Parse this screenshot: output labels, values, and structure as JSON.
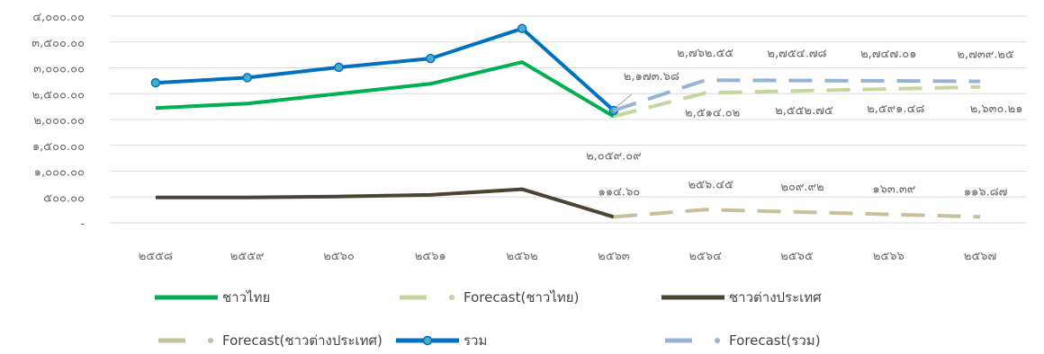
{
  "chart_data": {
    "type": "line",
    "title": "",
    "xlabel": "",
    "ylabel": "",
    "ylim": [
      0,
      4000
    ],
    "grid": true,
    "legend_position": "bottom",
    "y_ticks": [
      {
        "value": 0,
        "label": "-"
      },
      {
        "value": 500,
        "label": "๕๐๐.๐๐"
      },
      {
        "value": 1000,
        "label": "๑,๐๐๐.๐๐"
      },
      {
        "value": 1500,
        "label": "๑,๕๐๐.๐๐"
      },
      {
        "value": 2000,
        "label": "๒,๐๐๐.๐๐"
      },
      {
        "value": 2500,
        "label": "๒,๕๐๐.๐๐"
      },
      {
        "value": 3000,
        "label": "๓,๐๐๐.๐๐"
      },
      {
        "value": 3500,
        "label": "๓,๕๐๐.๐๐"
      },
      {
        "value": 4000,
        "label": "๔,๐๐๐.๐๐"
      }
    ],
    "categories": [
      "๒๕๕๘",
      "๒๕๕๙",
      "๒๕๖๐",
      "๒๕๖๑",
      "๒๕๖๒",
      "๒๕๖๓",
      "๒๕๖๔",
      "๒๕๖๕",
      "๒๕๖๖",
      "๒๕๖๗"
    ],
    "series": [
      {
        "name": "ชาวไทย",
        "color": "#00b050",
        "style": "solid",
        "markers": false,
        "values": [
          2220,
          2310,
          2500,
          2690,
          3110,
          2059.09,
          null,
          null,
          null,
          null
        ]
      },
      {
        "name": "Forecast(ชาวไทย)",
        "color": "#c4d79b",
        "style": "dashed",
        "markers": false,
        "values": [
          null,
          null,
          null,
          null,
          null,
          2059.09,
          2514.02,
          2552.75,
          2591.48,
          2630.21
        ]
      },
      {
        "name": "ชาวต่างประเทศ",
        "color": "#4a4430",
        "style": "solid",
        "markers": false,
        "values": [
          490,
          490,
          510,
          540,
          650,
          114.6,
          null,
          null,
          null,
          null
        ]
      },
      {
        "name": "Forecast(ชาวต่างประเทศ)",
        "color": "#c9bf9a",
        "style": "dashed",
        "markers": false,
        "values": [
          null,
          null,
          null,
          null,
          null,
          114.6,
          256.45,
          209.92,
          163.39,
          116.87
        ]
      },
      {
        "name": "รวม",
        "color": "#0070c0",
        "style": "solid",
        "markers": true,
        "values": [
          2710,
          2810,
          3010,
          3180,
          3760,
          2173.68,
          null,
          null,
          null,
          null
        ]
      },
      {
        "name": "Forecast(รวม)",
        "color": "#95b3d7",
        "style": "dashed",
        "markers": false,
        "values": [
          null,
          null,
          null,
          null,
          null,
          2173.68,
          2762.55,
          2754.78,
          2747.01,
          2739.25
        ]
      }
    ],
    "data_labels": [
      {
        "series": 5,
        "index": 5,
        "text": "๒,๑๗๓.๖๘"
      },
      {
        "series": 5,
        "index": 6,
        "text": "๒,๗๖๒.๕๕"
      },
      {
        "series": 5,
        "index": 7,
        "text": "๒,๗๕๔.๗๘"
      },
      {
        "series": 5,
        "index": 8,
        "text": "๒,๗๔๗.๐๑"
      },
      {
        "series": 5,
        "index": 9,
        "text": "๒,๗๓๙.๒๕"
      },
      {
        "series": 1,
        "index": 5,
        "text": "๒,๐๕๙.๐๙"
      },
      {
        "series": 1,
        "index": 6,
        "text": "๒,๕๑๔.๐๒"
      },
      {
        "series": 1,
        "index": 7,
        "text": "๒,๕๕๒.๗๕"
      },
      {
        "series": 1,
        "index": 8,
        "text": "๒,๕๙๑.๔๘"
      },
      {
        "series": 1,
        "index": 9,
        "text": "๒,๖๓๐.๒๑"
      },
      {
        "series": 3,
        "index": 5,
        "text": "๑๑๔.๖๐"
      },
      {
        "series": 3,
        "index": 6,
        "text": "๒๕๖.๔๕"
      },
      {
        "series": 3,
        "index": 7,
        "text": "๒๐๙.๙๒"
      },
      {
        "series": 3,
        "index": 8,
        "text": "๑๖๓.๓๙"
      },
      {
        "series": 3,
        "index": 9,
        "text": "๑๑๖.๘๗"
      }
    ]
  }
}
